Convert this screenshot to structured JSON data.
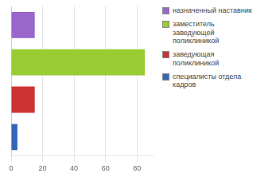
{
  "chart_data": {
    "type": "bar",
    "orientation": "horizontal",
    "categories": [
      null,
      null,
      null,
      null
    ],
    "series": [
      {
        "name": "назначенный наставник",
        "color": "#9966CC",
        "values": [
          15,
          null,
          null,
          null
        ]
      },
      {
        "name": "заместитель\nзаведующей\nполиклиникой",
        "color": "#99CC33",
        "values": [
          null,
          85,
          null,
          null
        ]
      },
      {
        "name": "заведующая\nполиклиникой",
        "color": "#CC3333",
        "values": [
          null,
          null,
          15,
          null
        ]
      },
      {
        "name": "специалисты отдела\nкадров",
        "color": "#3366BB",
        "values": [
          null,
          null,
          null,
          4
        ]
      }
    ],
    "xlim": [
      0,
      90
    ],
    "xticks": [
      0,
      20,
      40,
      60,
      80
    ],
    "grid": true,
    "legend": "right",
    "tick_labels": "x"
  }
}
